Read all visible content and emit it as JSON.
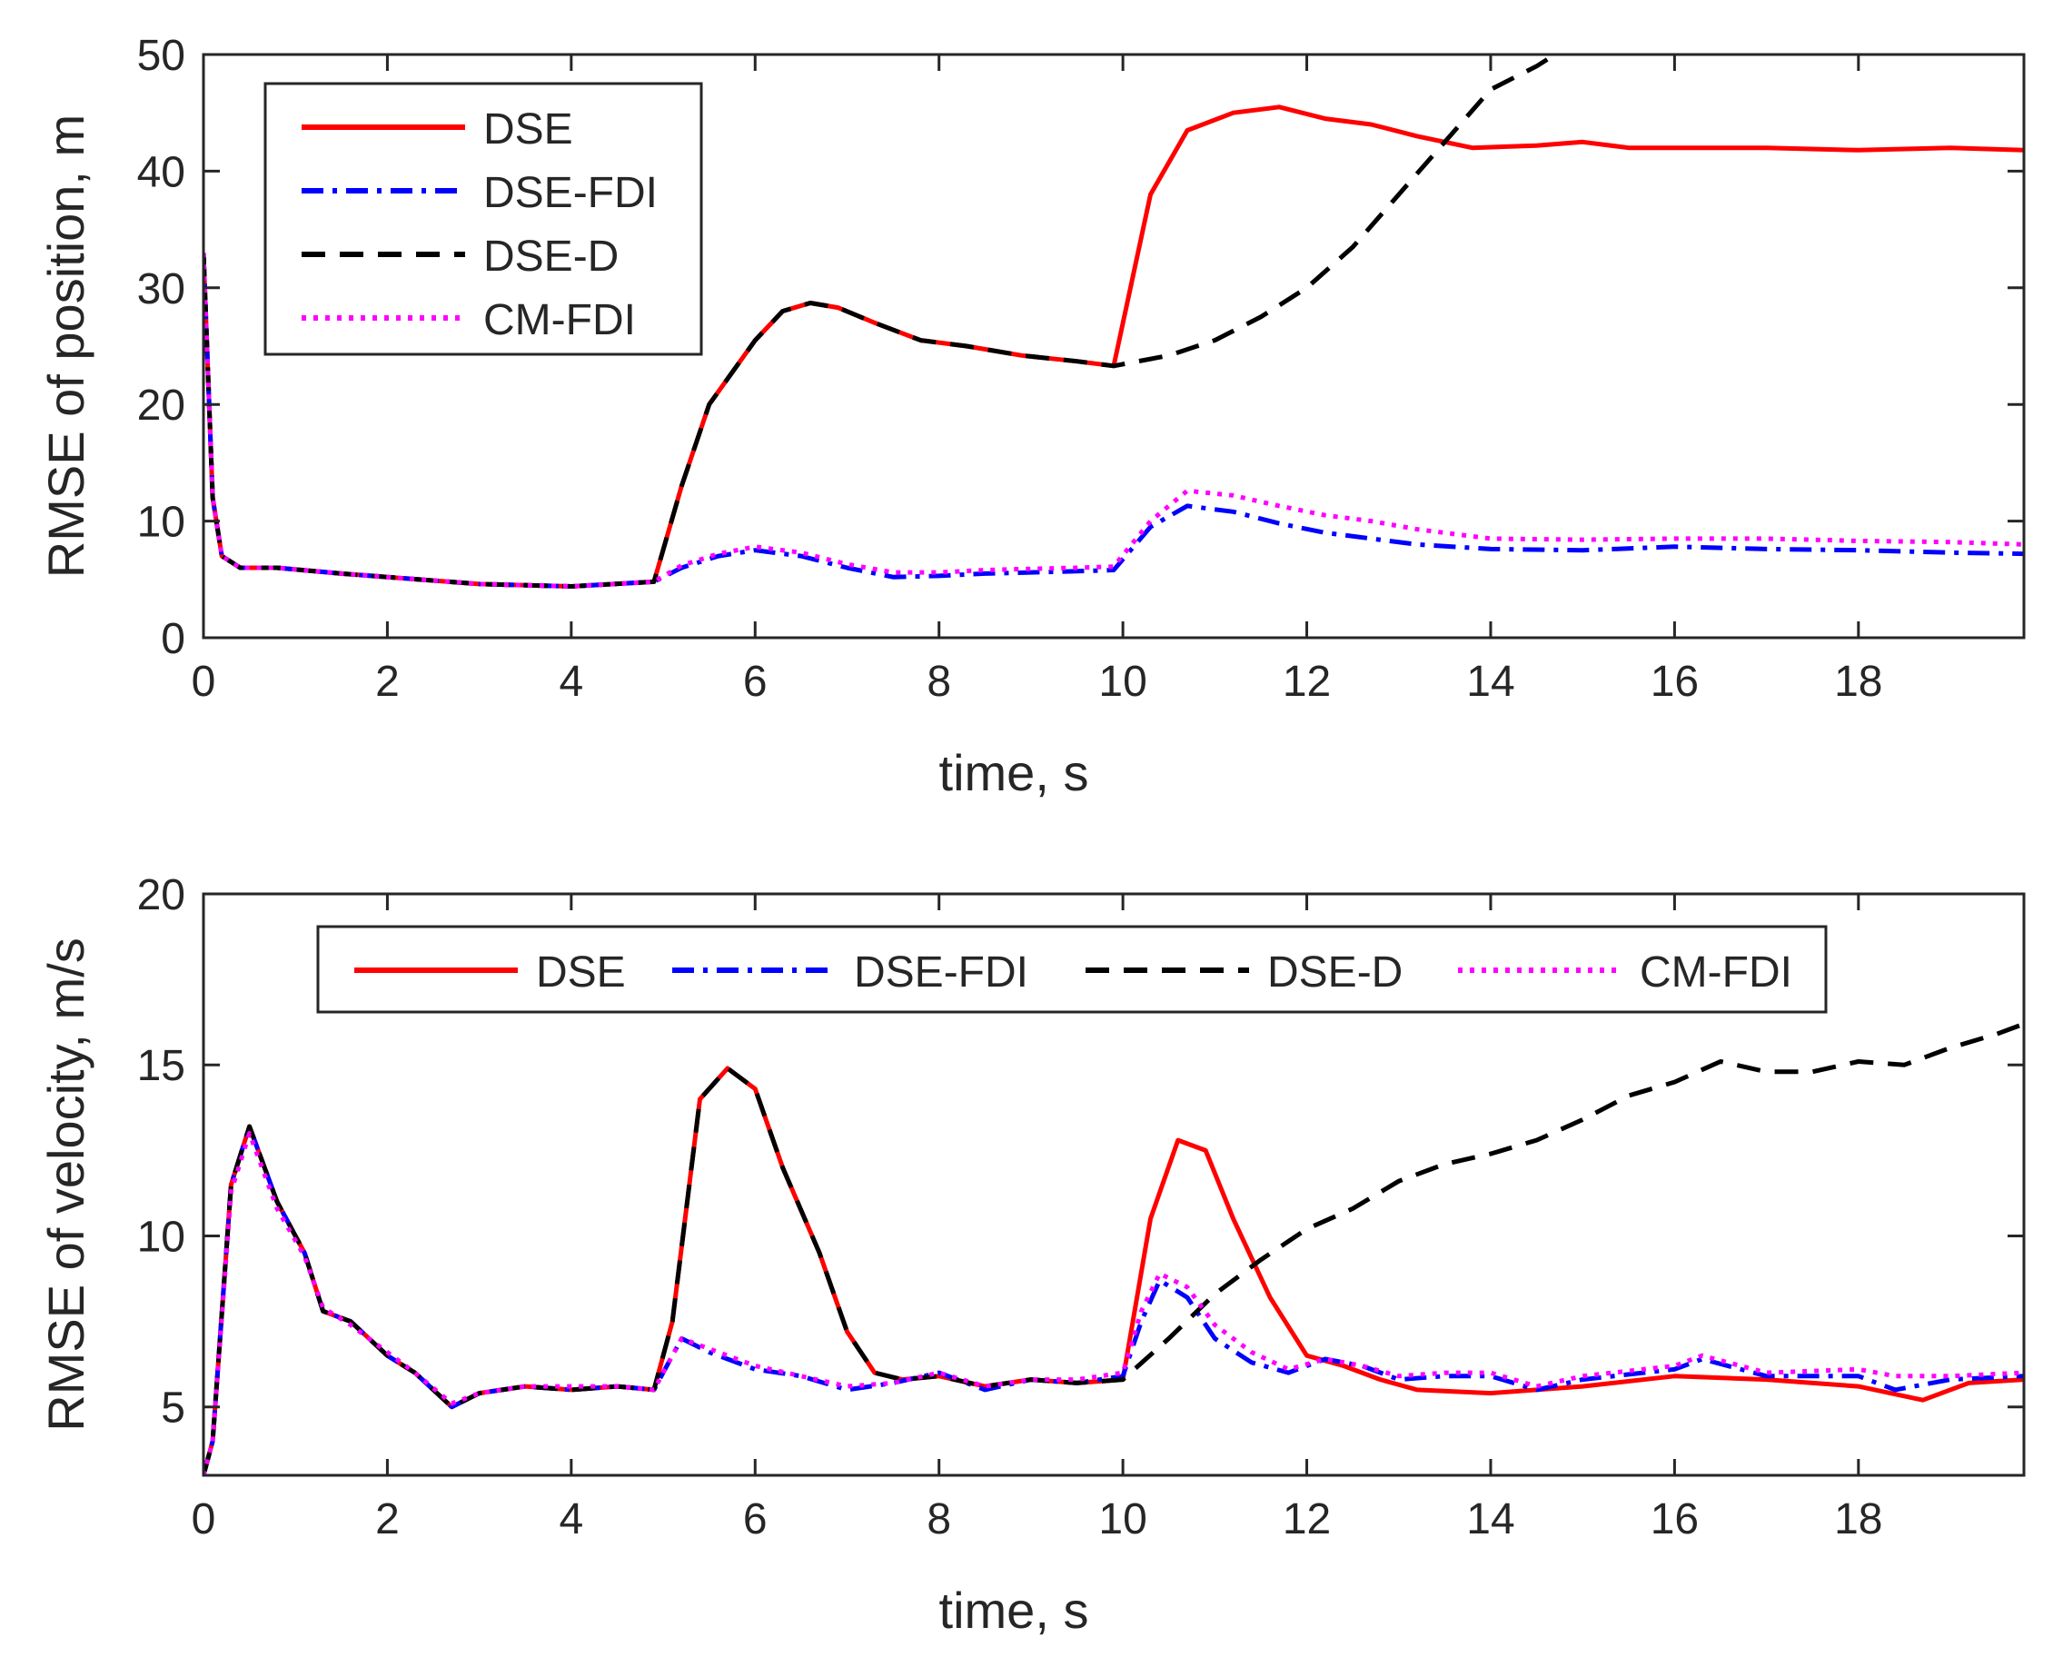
{
  "colors": {
    "DSE": "#ff0000",
    "DSE-FDI": "#0000ff",
    "DSE-D": "#000000",
    "CM-FDI": "#ff00ff",
    "axis": "#262626"
  },
  "chart_data": [
    {
      "type": "line",
      "xlabel": "time, s",
      "ylabel": "RMSE of position, m",
      "xlim": [
        0,
        19.8
      ],
      "ylim": [
        0,
        50
      ],
      "xticks": [
        0,
        2,
        4,
        6,
        8,
        10,
        12,
        14,
        16,
        18
      ],
      "yticks": [
        0,
        10,
        20,
        30,
        40,
        50
      ],
      "grid": false,
      "legend": {
        "placement": "top-left",
        "orientation": "vertical"
      },
      "series": [
        {
          "name": "DSE",
          "style": "solid",
          "x": [
            0,
            0.1,
            0.2,
            0.4,
            0.8,
            1.5,
            2,
            3,
            4,
            4.9,
            5.2,
            5.5,
            6,
            6.3,
            6.6,
            6.9,
            7.3,
            7.8,
            8.3,
            8.9,
            9.5,
            9.9,
            10.3,
            10.7,
            11.2,
            11.7,
            12.2,
            12.7,
            13.2,
            13.8,
            14.5,
            15,
            15.5,
            16,
            17,
            18,
            19,
            19.8
          ],
          "y": [
            33,
            12,
            7,
            6,
            6,
            5.5,
            5.2,
            4.6,
            4.4,
            4.8,
            13,
            20,
            25.5,
            28,
            28.7,
            28.3,
            27,
            25.5,
            25,
            24.2,
            23.7,
            23.3,
            38,
            43.5,
            45,
            45.5,
            44.5,
            44,
            43,
            42,
            42.2,
            42.5,
            42,
            42,
            42,
            41.8,
            42,
            41.8
          ]
        },
        {
          "name": "DSE-FDI",
          "style": "dashdot",
          "x": [
            0,
            0.1,
            0.2,
            0.4,
            0.8,
            1.5,
            2,
            3,
            4,
            4.9,
            5.2,
            5.6,
            6,
            6.5,
            7,
            7.5,
            8,
            8.5,
            9,
            9.5,
            9.9,
            10.3,
            10.7,
            11.2,
            11.7,
            12.2,
            12.7,
            13.2,
            14,
            15,
            16,
            17,
            18,
            19,
            19.8
          ],
          "y": [
            33,
            12,
            7,
            6,
            6,
            5.5,
            5.2,
            4.6,
            4.4,
            4.8,
            6,
            7,
            7.5,
            7,
            6,
            5.2,
            5.3,
            5.5,
            5.6,
            5.7,
            5.8,
            9.5,
            11.3,
            10.8,
            9.8,
            9,
            8.5,
            8,
            7.6,
            7.5,
            7.8,
            7.6,
            7.5,
            7.3,
            7.2
          ]
        },
        {
          "name": "DSE-D",
          "style": "dashed",
          "x": [
            0,
            0.1,
            0.2,
            0.4,
            0.8,
            1.5,
            2,
            3,
            4,
            4.9,
            5.2,
            5.5,
            6,
            6.3,
            6.6,
            6.9,
            7.3,
            7.8,
            8.3,
            8.9,
            9.5,
            9.9,
            10.5,
            11,
            11.5,
            12,
            12.5,
            13,
            13.5,
            14,
            14.5,
            14.7
          ],
          "y": [
            33,
            12,
            7,
            6,
            6,
            5.5,
            5.2,
            4.6,
            4.4,
            4.8,
            13,
            20,
            25.5,
            28,
            28.7,
            28.3,
            27,
            25.5,
            25,
            24.2,
            23.7,
            23.3,
            24.2,
            25.5,
            27.5,
            30,
            33.5,
            38,
            42.5,
            47,
            49,
            50
          ]
        },
        {
          "name": "CM-FDI",
          "style": "dotted",
          "x": [
            0,
            0.1,
            0.2,
            0.4,
            0.8,
            1.5,
            2,
            3,
            4,
            4.9,
            5.2,
            5.6,
            6,
            6.5,
            7,
            7.5,
            8,
            8.5,
            9,
            9.5,
            9.9,
            10.3,
            10.7,
            11.2,
            11.7,
            12.2,
            12.7,
            13.2,
            14,
            15,
            16,
            17,
            18,
            19,
            19.8
          ],
          "y": [
            33,
            12,
            7,
            6,
            6,
            5.5,
            5.2,
            4.6,
            4.4,
            4.8,
            6.2,
            7.2,
            7.8,
            7.3,
            6.3,
            5.6,
            5.6,
            5.8,
            5.9,
            6,
            6.1,
            10,
            12.6,
            12.2,
            11.3,
            10.5,
            10,
            9.3,
            8.5,
            8.4,
            8.5,
            8.5,
            8.3,
            8.2,
            8
          ]
        }
      ]
    },
    {
      "type": "line",
      "xlabel": "time, s",
      "ylabel": "RMSE of velocity, m/s",
      "xlim": [
        0,
        19.8
      ],
      "ylim": [
        3,
        20
      ],
      "xticks": [
        0,
        2,
        4,
        6,
        8,
        10,
        12,
        14,
        16,
        18
      ],
      "yticks": [
        5,
        10,
        15,
        20
      ],
      "grid": false,
      "legend": {
        "placement": "top",
        "orientation": "horizontal"
      },
      "series": [
        {
          "name": "DSE",
          "style": "solid",
          "x": [
            0,
            0.1,
            0.3,
            0.5,
            0.8,
            1.1,
            1.3,
            1.6,
            2,
            2.3,
            2.7,
            3,
            3.5,
            4,
            4.5,
            4.9,
            5.1,
            5.4,
            5.7,
            6,
            6.3,
            6.7,
            7,
            7.3,
            7.6,
            8,
            8.5,
            9,
            9.5,
            10,
            10.3,
            10.6,
            10.9,
            11.2,
            11.6,
            12,
            12.4,
            12.8,
            13.2,
            14,
            15,
            16,
            17,
            18,
            18.7,
            19.2,
            19.8
          ],
          "y": [
            3,
            4,
            11.5,
            13.2,
            11,
            9.5,
            7.8,
            7.5,
            6.5,
            6,
            5,
            5.4,
            5.6,
            5.5,
            5.6,
            5.5,
            7.5,
            14,
            14.9,
            14.3,
            12,
            9.5,
            7.2,
            6,
            5.8,
            5.9,
            5.6,
            5.8,
            5.7,
            5.8,
            10.5,
            12.8,
            12.5,
            10.5,
            8.2,
            6.5,
            6.2,
            5.8,
            5.5,
            5.4,
            5.6,
            5.9,
            5.8,
            5.6,
            5.2,
            5.7,
            5.8
          ]
        },
        {
          "name": "DSE-FDI",
          "style": "dashdot",
          "x": [
            0,
            0.1,
            0.3,
            0.5,
            0.8,
            1.1,
            1.3,
            1.6,
            2,
            2.3,
            2.7,
            3,
            3.5,
            4,
            4.5,
            4.9,
            5.2,
            5.5,
            6,
            6.5,
            7,
            7.5,
            8,
            8.5,
            9,
            9.5,
            10,
            10.2,
            10.4,
            10.7,
            11,
            11.4,
            11.8,
            12.2,
            12.6,
            13,
            13.5,
            14,
            14.5,
            15,
            16,
            16.3,
            17,
            18,
            18.4,
            19,
            19.8
          ],
          "y": [
            3,
            4,
            11.5,
            13.2,
            11,
            9.5,
            7.8,
            7.5,
            6.5,
            6,
            5,
            5.4,
            5.6,
            5.5,
            5.6,
            5.5,
            7,
            6.6,
            6.1,
            5.9,
            5.5,
            5.7,
            6,
            5.5,
            5.8,
            5.7,
            5.9,
            7.5,
            8.7,
            8.2,
            7,
            6.3,
            6,
            6.4,
            6.2,
            5.8,
            5.9,
            5.9,
            5.5,
            5.8,
            6.1,
            6.4,
            5.9,
            5.9,
            5.5,
            5.8,
            5.9
          ]
        },
        {
          "name": "DSE-D",
          "style": "dashed",
          "x": [
            0,
            0.1,
            0.3,
            0.5,
            0.8,
            1.1,
            1.3,
            1.6,
            2,
            2.3,
            2.7,
            3,
            3.5,
            4,
            4.5,
            4.9,
            5.1,
            5.4,
            5.7,
            6,
            6.3,
            6.7,
            7,
            7.3,
            7.6,
            8,
            8.5,
            9,
            9.5,
            10,
            10.5,
            11,
            11.5,
            12,
            12.5,
            13,
            13.5,
            14,
            14.5,
            15,
            15.5,
            16,
            16.5,
            17,
            17.5,
            18,
            18.5,
            19,
            19.5,
            19.8
          ],
          "y": [
            3,
            4,
            11.5,
            13.2,
            11,
            9.5,
            7.8,
            7.5,
            6.5,
            6,
            5,
            5.4,
            5.6,
            5.5,
            5.6,
            5.5,
            7.5,
            14,
            14.9,
            14.3,
            12,
            9.5,
            7.2,
            6,
            5.8,
            5.9,
            5.6,
            5.8,
            5.7,
            5.8,
            7,
            8.3,
            9.3,
            10.2,
            10.8,
            11.6,
            12.1,
            12.4,
            12.8,
            13.4,
            14.1,
            14.5,
            15.1,
            14.8,
            14.8,
            15.1,
            15.0,
            15.5,
            15.9,
            16.2
          ]
        },
        {
          "name": "CM-FDI",
          "style": "dotted",
          "x": [
            0,
            0.1,
            0.3,
            0.5,
            0.8,
            1.1,
            1.3,
            1.6,
            2,
            2.3,
            2.7,
            3,
            3.5,
            4,
            4.5,
            4.9,
            5.2,
            5.5,
            6,
            6.5,
            7,
            7.5,
            8,
            8.5,
            9,
            9.5,
            10,
            10.2,
            10.4,
            10.7,
            11,
            11.4,
            11.8,
            12.2,
            12.6,
            13,
            13.5,
            14,
            14.5,
            15,
            16,
            16.3,
            17,
            18,
            18.4,
            19,
            19.8
          ],
          "y": [
            3,
            4,
            11.3,
            13,
            10.8,
            9.4,
            7.9,
            7.4,
            6.6,
            6,
            5.1,
            5.4,
            5.6,
            5.6,
            5.6,
            5.5,
            7,
            6.7,
            6.2,
            5.9,
            5.6,
            5.7,
            6,
            5.6,
            5.8,
            5.8,
            6,
            7.8,
            8.9,
            8.5,
            7.4,
            6.6,
            6.1,
            6.4,
            6.2,
            5.9,
            6,
            6,
            5.6,
            5.9,
            6.2,
            6.5,
            6,
            6.1,
            5.9,
            5.9,
            6
          ]
        }
      ]
    }
  ]
}
